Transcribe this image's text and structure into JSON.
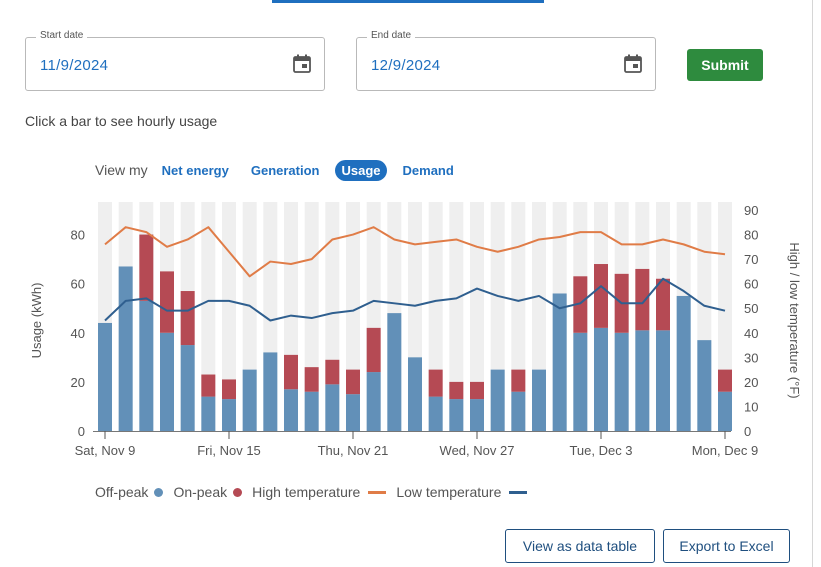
{
  "start_date": {
    "label": "Start date",
    "value": "11/9/2024",
    "icon": "calendar-icon"
  },
  "end_date": {
    "label": "End date",
    "value": "12/9/2024",
    "icon": "calendar-icon"
  },
  "submit_label": "Submit",
  "hint": "Click a bar to see hourly usage",
  "view": {
    "label": "View my",
    "options": [
      "Net energy",
      "Generation",
      "Usage",
      "Demand"
    ],
    "selected": "Usage"
  },
  "legend": {
    "off_peak": "Off-peak",
    "on_peak": "On-peak",
    "high_temp": "High temperature",
    "low_temp": "Low temperature"
  },
  "buttons": {
    "data_table": "View as data table",
    "export": "Export to Excel"
  },
  "colors": {
    "accent": "#1f6fbf",
    "submit": "#2e8b3e",
    "off_peak": "#6290b8",
    "on_peak": "#b54a54",
    "high_temp": "#e07c47",
    "low_temp": "#2f5f8f",
    "column_band": "#efefef"
  },
  "chart_data": {
    "type": "bar",
    "stacked": true,
    "ylabel": "Usage (kWh)",
    "y2label": "High / low temperature (°F)",
    "ylim": [
      0,
      90
    ],
    "y2lim": [
      0,
      90
    ],
    "yticks": [
      0,
      20,
      40,
      60,
      80
    ],
    "y2ticks": [
      0,
      10,
      20,
      30,
      40,
      50,
      60,
      70,
      80,
      90
    ],
    "categories": [
      "Nov 9",
      "Nov 10",
      "Nov 11",
      "Nov 12",
      "Nov 13",
      "Nov 14",
      "Nov 15",
      "Nov 16",
      "Nov 17",
      "Nov 18",
      "Nov 19",
      "Nov 20",
      "Nov 21",
      "Nov 22",
      "Nov 23",
      "Nov 24",
      "Nov 25",
      "Nov 26",
      "Nov 27",
      "Nov 28",
      "Nov 29",
      "Nov 30",
      "Dec 1",
      "Dec 2",
      "Dec 3",
      "Dec 4",
      "Dec 5",
      "Dec 6",
      "Dec 7",
      "Dec 8",
      "Dec 9"
    ],
    "x_tick_labels": [
      {
        "index": 0,
        "label": "Sat, Nov 9"
      },
      {
        "index": 6,
        "label": "Fri, Nov 15"
      },
      {
        "index": 12,
        "label": "Thu, Nov 21"
      },
      {
        "index": 18,
        "label": "Wed, Nov 27"
      },
      {
        "index": 24,
        "label": "Tue, Dec 3"
      },
      {
        "index": 30,
        "label": "Mon, Dec 9"
      }
    ],
    "series": [
      {
        "name": "Off-peak",
        "axis": "left",
        "kind": "bar",
        "values": [
          44,
          67,
          53,
          40,
          35,
          14,
          13,
          25,
          32,
          17,
          16,
          19,
          15,
          24,
          48,
          30,
          14,
          13,
          13,
          25,
          16,
          25,
          56,
          40,
          42,
          40,
          41,
          41,
          55,
          37,
          16
        ]
      },
      {
        "name": "On-peak",
        "axis": "left",
        "kind": "bar",
        "values": [
          0,
          0,
          27,
          25,
          22,
          9,
          8,
          0,
          0,
          14,
          10,
          10,
          10,
          18,
          0,
          0,
          11,
          7,
          7,
          0,
          9,
          0,
          0,
          23,
          26,
          24,
          25,
          21,
          0,
          0,
          9
        ]
      },
      {
        "name": "High temperature",
        "axis": "right",
        "kind": "line",
        "values": [
          76,
          83,
          81,
          75,
          78,
          83,
          73,
          63,
          69,
          68,
          70,
          78,
          80,
          83,
          78,
          76,
          77,
          78,
          75,
          73,
          75,
          78,
          79,
          81,
          81,
          76,
          76,
          78,
          76,
          73,
          72
        ]
      },
      {
        "name": "Low temperature",
        "axis": "right",
        "kind": "line",
        "values": [
          45,
          53,
          54,
          49,
          49,
          53,
          53,
          51,
          45,
          47,
          46,
          48,
          49,
          53,
          52,
          51,
          53,
          54,
          58,
          55,
          53,
          55,
          50,
          52,
          59,
          52,
          52,
          62,
          57,
          51,
          49
        ]
      }
    ]
  }
}
